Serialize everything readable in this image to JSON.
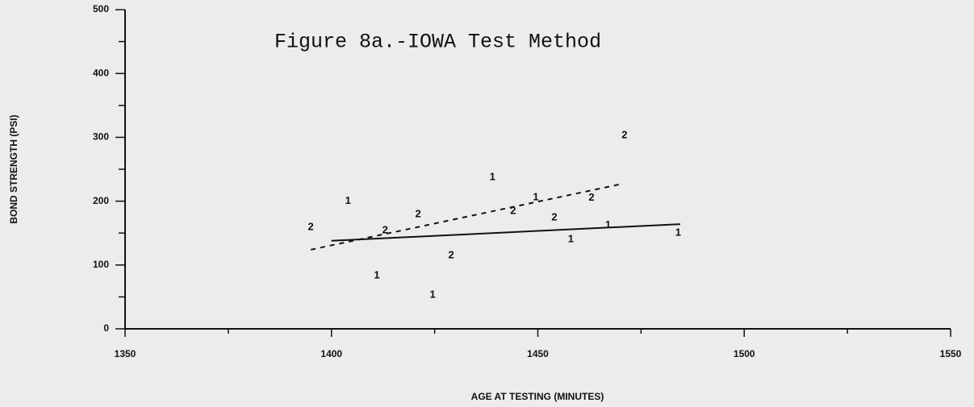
{
  "chart_data": {
    "type": "scatter",
    "title": "Figure 8a.-IOWA Test Method",
    "x_label": "AGE AT TESTING (MINUTES)",
    "y_label": "BOND STRENGTH (PSI)",
    "xlim": [
      1350,
      1550
    ],
    "ylim": [
      0,
      500
    ],
    "xticks": [
      1350,
      1400,
      1450,
      1500,
      1550
    ],
    "xminorticks": [
      1375,
      1425,
      1475,
      1525
    ],
    "yticks": [
      0,
      100,
      200,
      300,
      400,
      500
    ],
    "yminorticks": [
      50,
      150,
      250,
      350,
      450
    ],
    "series": [
      {
        "name": "1",
        "color": "#111111",
        "x": [
          1404,
          1411,
          1424.5,
          1439,
          1449.5,
          1458,
          1467,
          1484
        ],
        "values": [
          200,
          83,
          53,
          237,
          206,
          140,
          162,
          150
        ]
      },
      {
        "name": "2",
        "color": "#111111",
        "x": [
          1395,
          1413,
          1421,
          1429,
          1444,
          1454,
          1463,
          1471
        ],
        "values": [
          159,
          154,
          179,
          115,
          184,
          174,
          205,
          303
        ]
      }
    ],
    "lines": [
      {
        "style": "solid",
        "color": "#111111",
        "x": [
          1400,
          1484.5
        ],
        "values": [
          138,
          164
        ]
      },
      {
        "style": "dashed",
        "color": "#111111",
        "x": [
          1395,
          1469.6
        ],
        "values": [
          124,
          226
        ]
      }
    ]
  }
}
